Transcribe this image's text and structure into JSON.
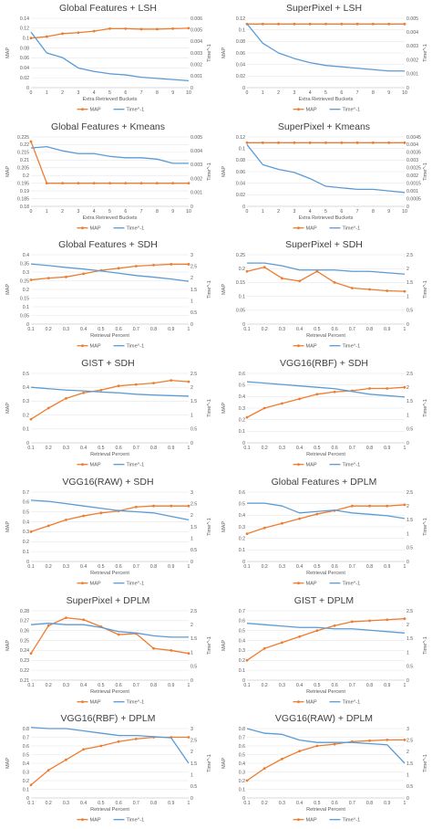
{
  "colors": {
    "map": "#ed7d31",
    "time": "#5b9bd5"
  },
  "chart_data": [
    {
      "type": "line",
      "title": "Global Features + LSH",
      "x": [
        0,
        1,
        2,
        3,
        4,
        5,
        6,
        7,
        8,
        9,
        10
      ],
      "xlabel": "Extra Retrieved Buckets",
      "ylabel": "MAP",
      "ylabel2": "Time^-1",
      "ylim": [
        0,
        0.14
      ],
      "yticks": [
        "0",
        "0.02",
        "0.04",
        "0.06",
        "0.08",
        "0.1",
        "0.12",
        "0.14"
      ],
      "y2lim": [
        0,
        0.006
      ],
      "y2ticks": [
        "0",
        "0.001",
        "0.002",
        "0.003",
        "0.004",
        "0.005",
        "0.006"
      ],
      "series": [
        {
          "name": "MAP",
          "axis": "left",
          "values": [
            0.1,
            0.103,
            0.109,
            0.111,
            0.114,
            0.119,
            0.119,
            0.118,
            0.118,
            0.119,
            0.12
          ]
        },
        {
          "name": "Time^-1",
          "axis": "right",
          "values": [
            0.0048,
            0.003,
            0.0026,
            0.0017,
            0.0014,
            0.0012,
            0.0011,
            0.0009,
            0.0008,
            0.0007,
            0.0006
          ]
        }
      ]
    },
    {
      "type": "line",
      "title": "SuperPixel + LSH",
      "x": [
        0,
        1,
        2,
        3,
        4,
        5,
        6,
        7,
        8,
        9,
        10
      ],
      "xlabel": "Extra Retrieved Buckets",
      "ylabel": "MAP",
      "ylabel2": "Time^-1",
      "ylim": [
        0,
        0.12
      ],
      "yticks": [
        "0",
        "0.02",
        "0.04",
        "0.06",
        "0.08",
        "0.1",
        "0.12"
      ],
      "y2lim": [
        0,
        0.005
      ],
      "y2ticks": [
        "0",
        "0.001",
        "0.002",
        "0.003",
        "0.004",
        "0.005"
      ],
      "series": [
        {
          "name": "MAP",
          "axis": "left",
          "values": [
            0.11,
            0.11,
            0.11,
            0.11,
            0.11,
            0.11,
            0.11,
            0.11,
            0.11,
            0.11,
            0.11
          ]
        },
        {
          "name": "Time^-1",
          "axis": "right",
          "values": [
            0.0046,
            0.0032,
            0.0025,
            0.0021,
            0.0018,
            0.0016,
            0.0015,
            0.0014,
            0.0013,
            0.0012,
            0.0012
          ]
        }
      ]
    },
    {
      "type": "line",
      "title": "Global Features + Kmeans",
      "x": [
        0,
        1,
        2,
        3,
        4,
        5,
        6,
        7,
        8,
        9,
        10
      ],
      "xlabel": "Extra Retrieved Buckets",
      "ylabel": "MAP",
      "ylabel2": "Time^-1",
      "ylim": [
        0.18,
        0.225
      ],
      "yticks": [
        "0.18",
        "0.185",
        "0.19",
        "0.195",
        "0.2",
        "0.205",
        "0.21",
        "0.215",
        "0.22",
        "0.225"
      ],
      "y2lim": [
        0,
        0.005
      ],
      "y2ticks": [
        "0",
        "0.001",
        "0.002",
        "0.003",
        "0.004",
        "0.005"
      ],
      "series": [
        {
          "name": "MAP",
          "axis": "left",
          "values": [
            0.222,
            0.195,
            0.195,
            0.195,
            0.195,
            0.195,
            0.195,
            0.195,
            0.195,
            0.195,
            0.195
          ]
        },
        {
          "name": "Time^-1",
          "axis": "right",
          "values": [
            0.0042,
            0.0043,
            0.004,
            0.0038,
            0.0038,
            0.0036,
            0.0035,
            0.0035,
            0.0034,
            0.0031,
            0.0031
          ]
        }
      ]
    },
    {
      "type": "line",
      "title": "SuperPixel + Kmeans",
      "x": [
        0,
        1,
        2,
        3,
        4,
        5,
        6,
        7,
        8,
        9,
        10
      ],
      "xlabel": "Extra Retrieved Buckets",
      "ylabel": "MAP",
      "ylabel2": "Time^-1",
      "ylim": [
        0,
        0.12
      ],
      "yticks": [
        "0",
        "0.02",
        "0.04",
        "0.06",
        "0.08",
        "0.1",
        "0.12"
      ],
      "y2lim": [
        0,
        0.0045
      ],
      "y2ticks": [
        "0",
        "0.0005",
        "0.001",
        "0.0015",
        "0.002",
        "0.0025",
        "0.003",
        "0.0035",
        "0.004",
        "0.0045"
      ],
      "series": [
        {
          "name": "MAP",
          "axis": "left",
          "values": [
            0.11,
            0.11,
            0.11,
            0.11,
            0.11,
            0.11,
            0.11,
            0.11,
            0.11,
            0.11,
            0.11
          ]
        },
        {
          "name": "Time^-1",
          "axis": "right",
          "values": [
            0.004,
            0.0027,
            0.0024,
            0.0022,
            0.0018,
            0.0013,
            0.0012,
            0.0011,
            0.0011,
            0.001,
            0.0009
          ]
        }
      ]
    },
    {
      "type": "line",
      "title": "Global Features + SDH",
      "x": [
        0.1,
        0.2,
        0.3,
        0.4,
        0.5,
        0.6,
        0.7,
        0.8,
        0.9,
        1
      ],
      "xlabel": "Retrieval Percent",
      "ylabel": "MAP",
      "ylabel2": "Time^-1",
      "ylim": [
        0,
        0.4
      ],
      "yticks": [
        "0",
        "0.05",
        "0.1",
        "0.15",
        "0.2",
        "0.25",
        "0.3",
        "0.35",
        "0.4"
      ],
      "y2lim": [
        0,
        3
      ],
      "y2ticks": [
        "0",
        "0.5",
        "1",
        "1.5",
        "2",
        "2.5",
        "3"
      ],
      "series": [
        {
          "name": "MAP",
          "axis": "left",
          "values": [
            0.255,
            0.265,
            0.272,
            0.29,
            0.31,
            0.322,
            0.334,
            0.34,
            0.345,
            0.345
          ]
        },
        {
          "name": "Time^-1",
          "axis": "right",
          "values": [
            2.6,
            2.53,
            2.45,
            2.38,
            2.3,
            2.2,
            2.1,
            2.03,
            1.95,
            1.85
          ]
        }
      ]
    },
    {
      "type": "line",
      "title": "SuperPixel + SDH",
      "x": [
        0.1,
        0.2,
        0.3,
        0.4,
        0.5,
        0.6,
        0.7,
        0.8,
        0.9,
        1
      ],
      "xlabel": "Retrieval Percent",
      "ylabel": "MAP",
      "ylabel2": "Time^-1",
      "ylim": [
        0,
        0.25
      ],
      "yticks": [
        "0",
        "0.05",
        "0.1",
        "0.15",
        "0.2",
        "0.25"
      ],
      "y2lim": [
        0,
        2.5
      ],
      "y2ticks": [
        "0",
        "0.5",
        "1",
        "1.5",
        "2",
        "2.5"
      ],
      "series": [
        {
          "name": "MAP",
          "axis": "left",
          "values": [
            0.19,
            0.205,
            0.165,
            0.155,
            0.19,
            0.15,
            0.13,
            0.125,
            0.12,
            0.118
          ]
        },
        {
          "name": "Time^-1",
          "axis": "right",
          "values": [
            2.2,
            2.2,
            2.1,
            1.95,
            1.95,
            1.95,
            1.9,
            1.9,
            1.85,
            1.8
          ]
        }
      ]
    },
    {
      "type": "line",
      "title": "GIST + SDH",
      "x": [
        0.1,
        0.2,
        0.3,
        0.4,
        0.5,
        0.6,
        0.7,
        0.8,
        0.9,
        1
      ],
      "xlabel": "Retrieval Percent",
      "ylabel": "MAP",
      "ylabel2": "Time^-1",
      "ylim": [
        0,
        0.5
      ],
      "yticks": [
        "0",
        "0.1",
        "0.2",
        "0.3",
        "0.4",
        "0.5"
      ],
      "y2lim": [
        0,
        2.5
      ],
      "y2ticks": [
        "0",
        "0.5",
        "1",
        "1.5",
        "2",
        "2.5"
      ],
      "series": [
        {
          "name": "MAP",
          "axis": "left",
          "values": [
            0.17,
            0.25,
            0.32,
            0.36,
            0.38,
            0.41,
            0.42,
            0.43,
            0.45,
            0.44
          ]
        },
        {
          "name": "Time^-1",
          "axis": "right",
          "values": [
            2.0,
            1.95,
            1.9,
            1.87,
            1.83,
            1.8,
            1.75,
            1.72,
            1.7,
            1.68
          ]
        }
      ]
    },
    {
      "type": "line",
      "title": "VGG16(RBF) + SDH",
      "x": [
        0.1,
        0.2,
        0.3,
        0.4,
        0.5,
        0.6,
        0.7,
        0.8,
        0.9,
        1
      ],
      "xlabel": "Retrieval Percent",
      "ylabel": "MAP",
      "ylabel2": "Time^-1",
      "ylim": [
        0,
        0.6
      ],
      "yticks": [
        "0",
        "0.1",
        "0.2",
        "0.3",
        "0.4",
        "0.5",
        "0.6"
      ],
      "y2lim": [
        0,
        2.5
      ],
      "y2ticks": [
        "0",
        "0.5",
        "1",
        "1.5",
        "2",
        "2.5"
      ],
      "series": [
        {
          "name": "MAP",
          "axis": "left",
          "values": [
            0.22,
            0.3,
            0.34,
            0.38,
            0.42,
            0.44,
            0.45,
            0.47,
            0.47,
            0.48
          ]
        },
        {
          "name": "Time^-1",
          "axis": "right",
          "values": [
            2.2,
            2.15,
            2.1,
            2.05,
            2.0,
            1.95,
            1.85,
            1.75,
            1.7,
            1.65
          ]
        }
      ]
    },
    {
      "type": "line",
      "title": "VGG16(RAW) + SDH",
      "x": [
        0.1,
        0.2,
        0.3,
        0.4,
        0.5,
        0.6,
        0.7,
        0.8,
        0.9,
        1
      ],
      "xlabel": "Retrieval Percent",
      "ylabel": "MAP",
      "ylabel2": "Time^-1",
      "ylim": [
        0,
        0.7
      ],
      "yticks": [
        "0",
        "0.1",
        "0.2",
        "0.3",
        "0.4",
        "0.5",
        "0.6",
        "0.7"
      ],
      "y2lim": [
        0,
        3
      ],
      "y2ticks": [
        "0",
        "0.5",
        "1",
        "1.5",
        "2",
        "2.5",
        "3"
      ],
      "series": [
        {
          "name": "MAP",
          "axis": "left",
          "values": [
            0.3,
            0.36,
            0.42,
            0.46,
            0.49,
            0.51,
            0.55,
            0.56,
            0.56,
            0.56
          ]
        },
        {
          "name": "Time^-1",
          "axis": "right",
          "values": [
            2.65,
            2.6,
            2.5,
            2.4,
            2.3,
            2.2,
            2.15,
            2.1,
            1.95,
            1.8
          ]
        }
      ]
    },
    {
      "type": "line",
      "title": "Global Features + DPLM",
      "x": [
        0.1,
        0.2,
        0.3,
        0.4,
        0.5,
        0.6,
        0.7,
        0.8,
        0.9,
        1
      ],
      "xlabel": "Retrieval Percent",
      "ylabel": "MAP",
      "ylabel2": "Time^-1",
      "ylim": [
        0,
        0.6
      ],
      "yticks": [
        "0",
        "0.1",
        "0.2",
        "0.3",
        "0.4",
        "0.5",
        "0.6"
      ],
      "y2lim": [
        0,
        2.5
      ],
      "y2ticks": [
        "0",
        "0.5",
        "1",
        "1.5",
        "2",
        "2.5"
      ],
      "series": [
        {
          "name": "MAP",
          "axis": "left",
          "values": [
            0.24,
            0.29,
            0.33,
            0.37,
            0.41,
            0.44,
            0.48,
            0.48,
            0.48,
            0.49
          ]
        },
        {
          "name": "Time^-1",
          "axis": "right",
          "values": [
            2.1,
            2.1,
            2.0,
            1.75,
            1.8,
            1.85,
            1.75,
            1.7,
            1.65,
            1.55
          ]
        }
      ]
    },
    {
      "type": "line",
      "title": "SuperPixel + DPLM",
      "x": [
        0.1,
        0.2,
        0.3,
        0.4,
        0.5,
        0.6,
        0.7,
        0.8,
        0.9,
        1
      ],
      "xlabel": "Retrieval Percent",
      "ylabel": "MAP",
      "ylabel2": "Time^-1",
      "ylim": [
        0.21,
        0.28
      ],
      "yticks": [
        "0.21",
        "0.22",
        "0.23",
        "0.24",
        "0.25",
        "0.26",
        "0.27",
        "0.28"
      ],
      "y2lim": [
        0,
        2.5
      ],
      "y2ticks": [
        "0",
        "0.5",
        "1",
        "1.5",
        "2",
        "2.5"
      ],
      "series": [
        {
          "name": "MAP",
          "axis": "left",
          "values": [
            0.237,
            0.265,
            0.273,
            0.271,
            0.264,
            0.256,
            0.257,
            0.242,
            0.24,
            0.237
          ]
        },
        {
          "name": "Time^-1",
          "axis": "right",
          "values": [
            2.0,
            2.05,
            2.0,
            2.0,
            1.9,
            1.75,
            1.7,
            1.6,
            1.55,
            1.55
          ]
        }
      ]
    },
    {
      "type": "line",
      "title": "GIST + DPLM",
      "x": [
        0.1,
        0.2,
        0.3,
        0.4,
        0.5,
        0.6,
        0.7,
        0.8,
        0.9,
        1
      ],
      "xlabel": "Retrieval Percent",
      "ylabel": "MAP",
      "ylabel2": "Time^-1",
      "ylim": [
        0,
        0.7
      ],
      "yticks": [
        "0",
        "0.1",
        "0.2",
        "0.3",
        "0.4",
        "0.5",
        "0.6",
        "0.7"
      ],
      "y2lim": [
        0,
        2.5
      ],
      "y2ticks": [
        "0",
        "0.5",
        "1",
        "1.5",
        "2",
        "2.5"
      ],
      "series": [
        {
          "name": "MAP",
          "axis": "left",
          "values": [
            0.2,
            0.32,
            0.38,
            0.44,
            0.5,
            0.55,
            0.59,
            0.6,
            0.61,
            0.62
          ]
        },
        {
          "name": "Time^-1",
          "axis": "right",
          "values": [
            2.05,
            2.0,
            1.95,
            1.9,
            1.9,
            1.85,
            1.85,
            1.8,
            1.75,
            1.7
          ]
        }
      ]
    },
    {
      "type": "line",
      "title": "VGG16(RBF) + DPLM",
      "x": [
        0.1,
        0.2,
        0.3,
        0.4,
        0.5,
        0.6,
        0.7,
        0.8,
        0.9,
        1
      ],
      "xlabel": "Retrieval Percent",
      "ylabel": "MAP",
      "ylabel2": "Time^-1",
      "ylim": [
        0,
        0.8
      ],
      "yticks": [
        "0",
        "0.1",
        "0.2",
        "0.3",
        "0.4",
        "0.5",
        "0.6",
        "0.7",
        "0.8"
      ],
      "y2lim": [
        0,
        3
      ],
      "y2ticks": [
        "0",
        "0.5",
        "1",
        "1.5",
        "2",
        "2.5",
        "3"
      ],
      "series": [
        {
          "name": "MAP",
          "axis": "left",
          "values": [
            0.15,
            0.32,
            0.44,
            0.56,
            0.6,
            0.65,
            0.68,
            0.7,
            0.7,
            0.7
          ]
        },
        {
          "name": "Time^-1",
          "axis": "right",
          "values": [
            3.05,
            3.0,
            3.0,
            2.9,
            2.8,
            2.7,
            2.7,
            2.65,
            2.6,
            1.5
          ]
        }
      ]
    },
    {
      "type": "line",
      "title": "VGG16(RAW) + DPLM",
      "x": [
        0.1,
        0.2,
        0.3,
        0.4,
        0.5,
        0.6,
        0.7,
        0.8,
        0.9,
        1
      ],
      "xlabel": "Retrieval Percent",
      "ylabel": "MAP",
      "ylabel2": "Time^-1",
      "ylim": [
        0,
        0.8
      ],
      "yticks": [
        "0",
        "0.1",
        "0.2",
        "0.3",
        "0.4",
        "0.5",
        "0.6",
        "0.7",
        "0.8"
      ],
      "y2lim": [
        0,
        3
      ],
      "y2ticks": [
        "0",
        "0.5",
        "1",
        "1.5",
        "2",
        "2.5",
        "3"
      ],
      "series": [
        {
          "name": "MAP",
          "axis": "left",
          "values": [
            0.2,
            0.34,
            0.45,
            0.54,
            0.6,
            0.62,
            0.65,
            0.66,
            0.67,
            0.67
          ]
        },
        {
          "name": "Time^-1",
          "axis": "right",
          "values": [
            3.0,
            2.8,
            2.75,
            2.5,
            2.4,
            2.4,
            2.4,
            2.35,
            2.3,
            1.5
          ]
        }
      ]
    }
  ]
}
